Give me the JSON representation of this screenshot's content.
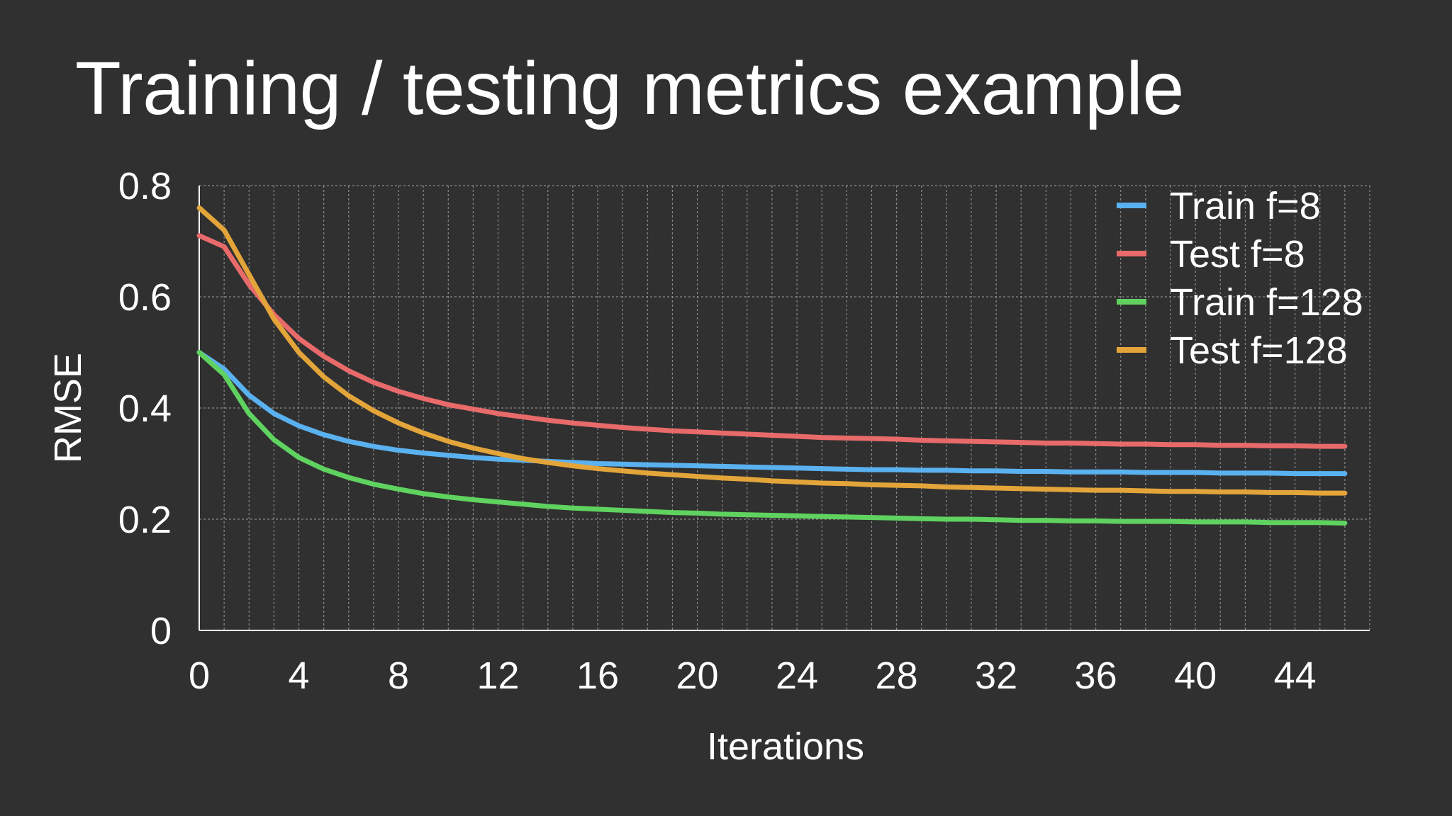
{
  "slide": {
    "title": "Training / testing metrics example"
  },
  "colors": {
    "background": "#303030",
    "grid": "#8a8a8a",
    "axis": "#ffffff",
    "text": "#ffffff"
  },
  "chart_data": {
    "type": "line",
    "title": "",
    "xlabel": "Iterations",
    "ylabel": "RMSE",
    "xlim": [
      0,
      47
    ],
    "ylim": [
      0,
      0.8
    ],
    "x_ticks": [
      0,
      4,
      8,
      12,
      16,
      20,
      24,
      28,
      32,
      36,
      40,
      44
    ],
    "y_ticks": [
      0,
      0.2,
      0.4,
      0.6,
      0.8
    ],
    "y_tick_labels": [
      "0",
      "0.2",
      "0.4",
      "0.6",
      "0.8"
    ],
    "grid": true,
    "legend_position": "top-right",
    "x": [
      0,
      1,
      2,
      3,
      4,
      5,
      6,
      7,
      8,
      9,
      10,
      11,
      12,
      13,
      14,
      15,
      16,
      17,
      18,
      19,
      20,
      21,
      22,
      23,
      24,
      25,
      26,
      27,
      28,
      29,
      30,
      31,
      32,
      33,
      34,
      35,
      36,
      37,
      38,
      39,
      40,
      41,
      42,
      43,
      44,
      45,
      46
    ],
    "series": [
      {
        "name": "Train f=8",
        "color": "#5ab1ef",
        "values": [
          0.5,
          0.47,
          0.423,
          0.39,
          0.368,
          0.352,
          0.34,
          0.331,
          0.324,
          0.319,
          0.315,
          0.311,
          0.308,
          0.306,
          0.304,
          0.302,
          0.3,
          0.299,
          0.298,
          0.297,
          0.296,
          0.295,
          0.294,
          0.293,
          0.292,
          0.291,
          0.29,
          0.289,
          0.289,
          0.288,
          0.288,
          0.287,
          0.287,
          0.286,
          0.286,
          0.285,
          0.285,
          0.285,
          0.284,
          0.284,
          0.284,
          0.283,
          0.283,
          0.283,
          0.282,
          0.282,
          0.282
        ]
      },
      {
        "name": "Test f=8",
        "color": "#e86a6a",
        "values": [
          0.71,
          0.69,
          0.622,
          0.568,
          0.525,
          0.493,
          0.467,
          0.446,
          0.43,
          0.417,
          0.406,
          0.398,
          0.39,
          0.384,
          0.378,
          0.373,
          0.369,
          0.365,
          0.362,
          0.359,
          0.357,
          0.355,
          0.353,
          0.351,
          0.349,
          0.347,
          0.346,
          0.345,
          0.344,
          0.342,
          0.341,
          0.34,
          0.339,
          0.338,
          0.337,
          0.337,
          0.336,
          0.335,
          0.335,
          0.334,
          0.334,
          0.333,
          0.333,
          0.332,
          0.332,
          0.331,
          0.331
        ]
      },
      {
        "name": "Train f=128",
        "color": "#5fd25f",
        "values": [
          0.5,
          0.46,
          0.39,
          0.343,
          0.311,
          0.29,
          0.275,
          0.263,
          0.254,
          0.246,
          0.24,
          0.235,
          0.231,
          0.227,
          0.223,
          0.22,
          0.218,
          0.216,
          0.214,
          0.212,
          0.211,
          0.209,
          0.208,
          0.207,
          0.206,
          0.205,
          0.204,
          0.203,
          0.202,
          0.201,
          0.2,
          0.2,
          0.199,
          0.198,
          0.198,
          0.197,
          0.197,
          0.196,
          0.196,
          0.196,
          0.195,
          0.195,
          0.195,
          0.194,
          0.194,
          0.194,
          0.193
        ]
      },
      {
        "name": "Test f=128",
        "color": "#e3a53a",
        "values": [
          0.76,
          0.72,
          0.64,
          0.56,
          0.5,
          0.456,
          0.422,
          0.395,
          0.373,
          0.355,
          0.34,
          0.328,
          0.318,
          0.309,
          0.302,
          0.296,
          0.291,
          0.287,
          0.283,
          0.28,
          0.277,
          0.274,
          0.272,
          0.269,
          0.267,
          0.265,
          0.264,
          0.262,
          0.261,
          0.26,
          0.258,
          0.257,
          0.256,
          0.255,
          0.254,
          0.253,
          0.252,
          0.252,
          0.251,
          0.25,
          0.25,
          0.249,
          0.249,
          0.248,
          0.248,
          0.247,
          0.247
        ]
      }
    ]
  }
}
